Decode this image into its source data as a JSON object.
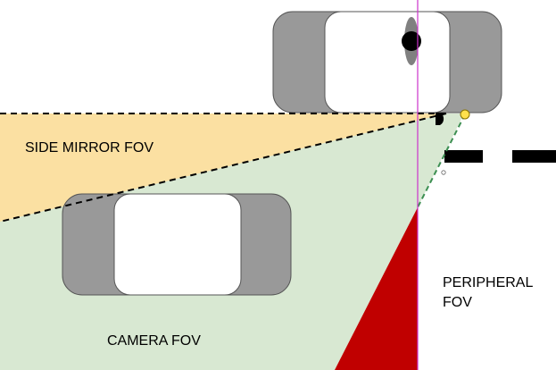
{
  "labels": {
    "side_mirror_fov": "SIDE MIRROR FOV",
    "camera_fov": "CAMERA FOV",
    "peripheral_line1": "PERIPHERAL",
    "peripheral_line2": "FOV"
  },
  "colors": {
    "side_mirror_fov": "#fbe0a2",
    "camera_fov": "#d8e8d2",
    "blind_spot": "#c00000",
    "car_body": "#999999",
    "car_window": "#ffffff",
    "sight_line": "#cc33cc",
    "camera_point": "#ffe14d",
    "fov_boundary": "#3d8f52",
    "lane_marking": "#000000"
  }
}
